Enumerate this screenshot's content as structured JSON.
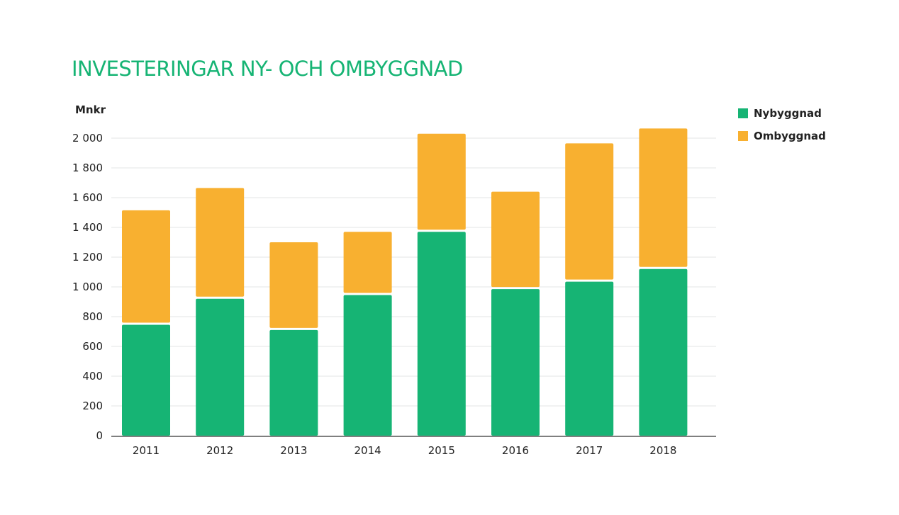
{
  "chart_data": {
    "type": "bar",
    "stacked": true,
    "title": "INVESTERINGAR NY- OCH OMBYGGNAD",
    "ylabel": "Mnkr",
    "xlabel": "",
    "categories": [
      "2011",
      "2012",
      "2013",
      "2014",
      "2015",
      "2016",
      "2017",
      "2018"
    ],
    "series": [
      {
        "name": "Nybyggnad",
        "color": "#16b474",
        "values": [
          745,
          920,
          710,
          945,
          1370,
          985,
          1035,
          1120
        ]
      },
      {
        "name": "Ombyggnad",
        "color": "#f8b030",
        "values": [
          770,
          745,
          590,
          425,
          660,
          655,
          930,
          945
        ]
      }
    ],
    "ylim": [
      0,
      2000
    ],
    "yticks": [
      {
        "value": 0,
        "label": "0"
      },
      {
        "value": 200,
        "label": "200"
      },
      {
        "value": 400,
        "label": "400"
      },
      {
        "value": 600,
        "label": "600"
      },
      {
        "value": 800,
        "label": "800"
      },
      {
        "value": 1000,
        "label": "1 000"
      },
      {
        "value": 1200,
        "label": "1 200"
      },
      {
        "value": 1400,
        "label": "1 400"
      },
      {
        "value": 1600,
        "label": "1 600"
      },
      {
        "value": 1800,
        "label": "1 800"
      },
      {
        "value": 2000,
        "label": "2 000"
      }
    ],
    "grid": true,
    "legend_position": "top-right"
  }
}
